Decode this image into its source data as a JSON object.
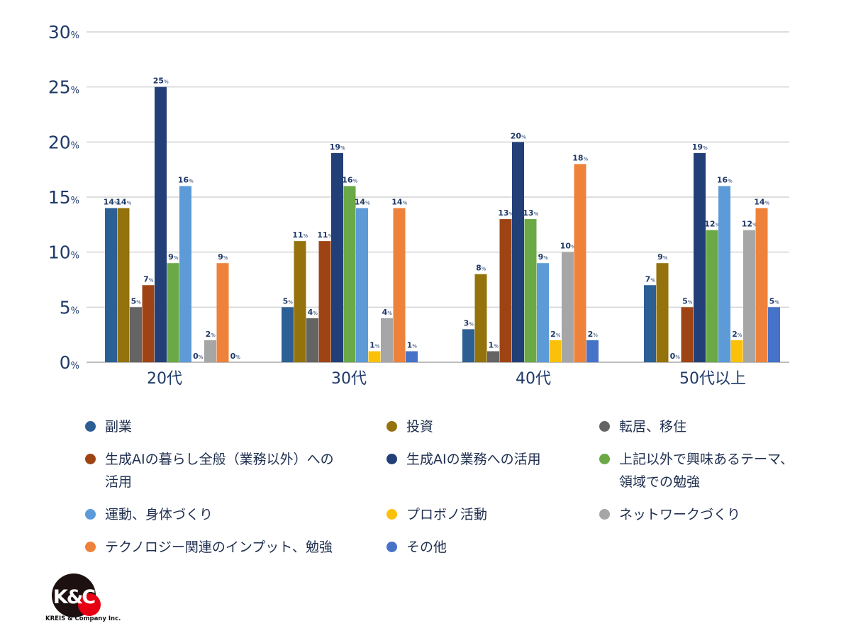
{
  "chart_data": {
    "type": "bar",
    "categories": [
      "20代",
      "30代",
      "40代",
      "50代以上"
    ],
    "ylim": [
      0,
      30
    ],
    "yticks": [
      0,
      5,
      10,
      15,
      20,
      25,
      30
    ],
    "unit": "%",
    "grid": true,
    "legend_position": "bottom",
    "series": [
      {
        "name": "副業",
        "color": "#2c5f93",
        "values": [
          14,
          5,
          3,
          7
        ]
      },
      {
        "name": "投資",
        "color": "#94720c",
        "values": [
          14,
          11,
          8,
          9
        ]
      },
      {
        "name": "転居、移住",
        "color": "#646464",
        "values": [
          5,
          4,
          1,
          0
        ]
      },
      {
        "name": "生成AIの暮らし全般（業務以外）への\n活用",
        "color": "#9e4414",
        "values": [
          7,
          11,
          13,
          5
        ]
      },
      {
        "name": "生成AIの業務への活用",
        "color": "#223f78",
        "values": [
          25,
          19,
          20,
          19
        ]
      },
      {
        "name": "上記以外で興味あるテーマ、\n領域での勉強",
        "color": "#6aa945",
        "values": [
          9,
          16,
          13,
          12
        ]
      },
      {
        "name": "運動、身体づくり",
        "color": "#5c9bd7",
        "values": [
          16,
          14,
          9,
          16
        ]
      },
      {
        "name": "プロボノ活動",
        "color": "#fbc10a",
        "values": [
          0,
          1,
          2,
          2
        ]
      },
      {
        "name": "ネットワークづくり",
        "color": "#a6a6a6",
        "values": [
          2,
          4,
          10,
          12
        ]
      },
      {
        "name": "テクノロジー関連のインプット、勉強",
        "color": "#ee823a",
        "values": [
          9,
          14,
          18,
          14
        ]
      },
      {
        "name": "その他",
        "color": "#4672c8",
        "values": [
          0,
          1,
          2,
          5
        ]
      }
    ]
  },
  "logo": {
    "brand": "K&C",
    "company": "KREIS & Company Inc."
  }
}
